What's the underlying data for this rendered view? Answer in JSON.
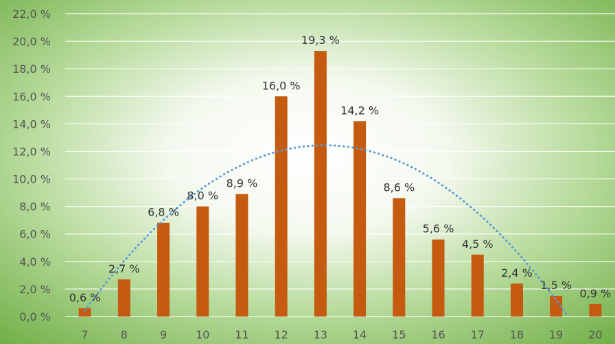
{
  "chart_data": {
    "type": "bar",
    "categories": [
      "7",
      "8",
      "9",
      "10",
      "11",
      "12",
      "13",
      "14",
      "15",
      "16",
      "17",
      "18",
      "19",
      "20"
    ],
    "values": [
      0.6,
      2.7,
      6.8,
      8.0,
      8.9,
      16.0,
      19.3,
      14.2,
      8.6,
      5.6,
      4.5,
      2.4,
      1.5,
      0.9
    ],
    "data_labels": [
      "0,6 %",
      "2,7 %",
      "6,8 %",
      "8,0 %",
      "8,9 %",
      "16,0 %",
      "19,3 %",
      "14,2 %",
      "8,6 %",
      "5,6 %",
      "4,5 %",
      "2,4 %",
      "1,5 %",
      "0,9 %"
    ],
    "y_ticks": [
      "0,0 %",
      "2,0 %",
      "4,0 %",
      "6,0 %",
      "8,0 %",
      "10,0 %",
      "12,0 %",
      "14,0 %",
      "16,0 %",
      "18,0 %",
      "20,0 %",
      "22,0 %"
    ],
    "ylim": [
      0,
      22
    ],
    "grid": true,
    "trendline": {
      "type": "polynomial",
      "degree": 2,
      "style": "dotted"
    },
    "colors": {
      "bar": "#C55A11",
      "trendline": "#5B9BD5",
      "gridline": "#FFFFFF",
      "background_center": "#FFFFFF",
      "background_edge": "#70AD47"
    }
  }
}
